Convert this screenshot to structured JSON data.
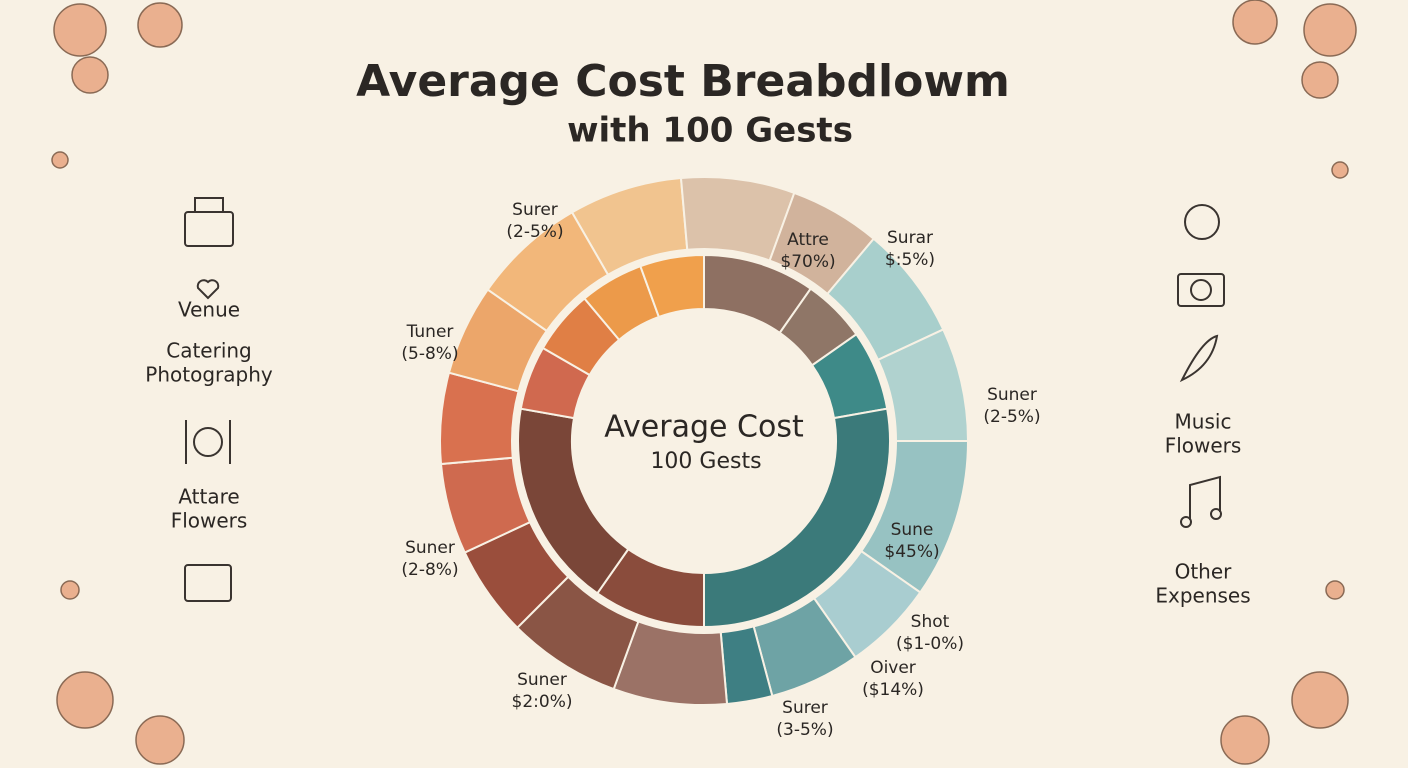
{
  "title": "Average Cost Breabdlowm",
  "subtitle": "with 100 Gests",
  "center": {
    "title": "Average Cost",
    "subtitle": "100 Gests"
  },
  "left_labels": [
    [
      "Venue"
    ],
    [
      "Catering",
      "Photography"
    ],
    [
      "Attare",
      "Flowers"
    ]
  ],
  "right_labels": [
    [
      "Music",
      "Flowers"
    ],
    [
      "Other",
      "Expenses"
    ]
  ],
  "ring_labels": [
    {
      "name": "Surer",
      "note": "(2-5%)"
    },
    {
      "name": "Attre",
      "note": "$70%)"
    },
    {
      "name": "Surar",
      "note": "$:5%)"
    },
    {
      "name": "Tuner",
      "note": "(5-8%)"
    },
    {
      "name": "Suner",
      "note": "(2-5%)"
    },
    {
      "name": "Sune",
      "note": "$45%)"
    },
    {
      "name": "Suner",
      "note": "(2-8%)"
    },
    {
      "name": "Shot",
      "note": "($1-0%)"
    },
    {
      "name": "Oiver",
      "note": "($14%)"
    },
    {
      "name": "Suner",
      "note": "$2:0%)"
    },
    {
      "name": "Surer",
      "note": "(3-5%)"
    }
  ]
}
